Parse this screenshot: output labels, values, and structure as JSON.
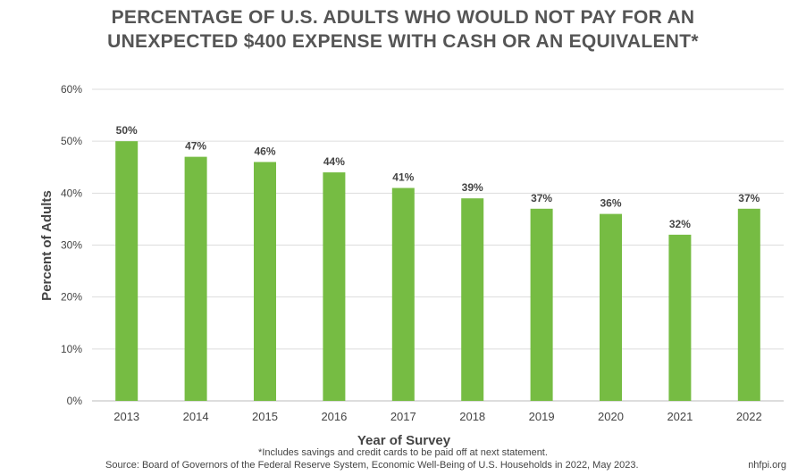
{
  "title_line1": "PERCENTAGE OF U.S. ADULTS WHO WOULD NOT PAY FOR AN",
  "title_line2": "UNEXPECTED $400 EXPENSE WITH CASH OR AN EQUIVALENT*",
  "footnote": "*Includes savings and credit cards to be paid off at next statement.",
  "source": "Source: Board of Governors of the Federal Reserve System, Economic Well-Being of U.S. Households in 2022, May 2023.",
  "site": "nhfpi.org",
  "chart_data": {
    "type": "bar",
    "title": "PERCENTAGE OF U.S. ADULTS WHO WOULD NOT PAY FOR AN UNEXPECTED $400 EXPENSE WITH CASH OR AN EQUIVALENT*",
    "xlabel": "Year of Survey",
    "ylabel": "Percent of Adults",
    "categories": [
      "2013",
      "2014",
      "2015",
      "2016",
      "2017",
      "2018",
      "2019",
      "2020",
      "2021",
      "2022"
    ],
    "values": [
      50,
      47,
      46,
      44,
      41,
      39,
      37,
      36,
      32,
      37
    ],
    "value_labels": [
      "50%",
      "47%",
      "46%",
      "44%",
      "41%",
      "39%",
      "37%",
      "36%",
      "32%",
      "37%"
    ],
    "ylim": [
      0,
      60
    ],
    "yticks": [
      0,
      10,
      20,
      30,
      40,
      50,
      60
    ],
    "ytick_labels": [
      "0%",
      "10%",
      "20%",
      "30%",
      "40%",
      "50%",
      "60%"
    ],
    "grid": true,
    "bar_color": "#76bc43",
    "grid_color": "#dddddd"
  }
}
